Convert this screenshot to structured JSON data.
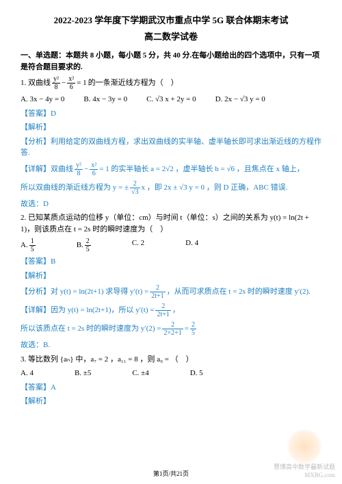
{
  "header": {
    "line1": "2022-2023 学年度下学期武汉市重点中学 5G 联合体期末考试",
    "line2": "高二数学试卷"
  },
  "section_instr": "一、单选题：本题共 8 小题，每小题 5 分，共 40 分.在每小题给出的四个选项中，只有一项是符合题目要求的.",
  "q1": {
    "prefix": "1. 双曲线",
    "frac1_num": "y²",
    "frac1_den": "8",
    "minus": " − ",
    "frac2_num": "x²",
    "frac2_den": "6",
    "eq": " = 1",
    "suffix": " 的一条渐近线方程为（　）",
    "opts": {
      "A": "A.  3x − 4y = 0",
      "B": "B.  4x − 3y = 0",
      "C": "C.  √3 x + 2y = 0",
      "D": "D.  2x − √3 y = 0"
    },
    "ans_label": "【答案】D",
    "jx_label": "【解析】",
    "fx_label": "【分析】利用给定的双曲线方程，求出双曲线的实半轴、虚半轴长即可求出渐近线的方程作答.",
    "xj_prefix": "【详解】双曲线 ",
    "xj_eq": " = 1 的实半轴长 a = 2√2 ，虚半轴长 b = √6 ，且焦点在 x 轴上，",
    "line2a": "所以双曲线的渐近线方程为 y = ± ",
    "line2_num": "2",
    "line2_den": "√3",
    "line2b": " x ，即 2x ± √3 y = 0 ，则 D 正确，ABC 错误.",
    "gx": "故选：D"
  },
  "q2": {
    "stem": "2. 已知某质点运动的位移 y（单位：cm）与时间 t（单位：s）之间的关系为 y(t) = ln(2t + 1)，则该质点在 t = 2s 时的瞬时速度为（　）",
    "opts": {
      "A_pre": "A.  ",
      "A_num": "1",
      "A_den": "5",
      "B_pre": "B.  ",
      "B_num": "2",
      "B_den": "5",
      "C": "C. 2",
      "D": "D. 4"
    },
    "ans_label": "【答案】B",
    "jx_label": "【解析】",
    "fx_prefix": "【分析】对 y(t) = ln(2t+1) 求导得 y′(t) = ",
    "fx_num": "2",
    "fx_den": "2t+1",
    "fx_suffix": " ，从而可求质点在 t = 2s 时的瞬时速度 y′(2).",
    "xj_prefix": "【详解】因为 y(t) = ln(2t+1)，所以 y′(t) = ",
    "xj_suffix": " ，",
    "line2a": "所以该质点在 t = 2s 时的瞬时速度为 y′(2) = ",
    "l2_num1": "2",
    "l2_den1": "2×2+1",
    "l2_eq": " = ",
    "l2_num2": "2",
    "l2_den2": "5",
    "gx": "故选：B."
  },
  "q3": {
    "stem": "3. 等比数列 {aₙ} 中，a₇ = 2 ，a₁₁ = 8 ，则 a₉ = （　）",
    "opts": {
      "A": "A. 4",
      "B": "B. ±5",
      "C": "C. ±4",
      "D": "D. 5"
    },
    "ans_label": "【答案】A",
    "jx_label": "【解析】"
  },
  "footer": {
    "page": "第1页/共21页",
    "wm1": "慧博高中数学最新试题",
    "wm2": "MXBG.com"
  },
  "colors": {
    "text": "#000000",
    "answer": "#1e7fc0",
    "watermark": "#bdbdbd",
    "background": "#ffffff"
  }
}
